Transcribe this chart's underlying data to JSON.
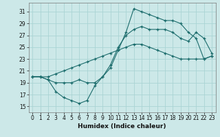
{
  "xlabel": "Humidex (Indice chaleur)",
  "background_color": "#cce8e8",
  "line_color": "#1a6b6b",
  "grid_color": "#aad4d4",
  "xlim": [
    -0.5,
    23.5
  ],
  "ylim": [
    14,
    32.5
  ],
  "xticks": [
    0,
    1,
    2,
    3,
    4,
    5,
    6,
    7,
    8,
    9,
    10,
    11,
    12,
    13,
    14,
    15,
    16,
    17,
    18,
    19,
    20,
    21,
    22,
    23
  ],
  "yticks": [
    15,
    17,
    19,
    21,
    23,
    25,
    27,
    29,
    31
  ],
  "line1_x": [
    0,
    1,
    2,
    3,
    4,
    5,
    6,
    7,
    8,
    9,
    10,
    11,
    12,
    13,
    14,
    15,
    16,
    17,
    18,
    19,
    20,
    21,
    22,
    23
  ],
  "line1_y": [
    20,
    20,
    19.5,
    17.5,
    16.5,
    16,
    15.5,
    16,
    18.5,
    20,
    22,
    25,
    27,
    28,
    28.5,
    28,
    28,
    28,
    27.5,
    26.5,
    26,
    27.5,
    26.5,
    24.0
  ],
  "line2_x": [
    0,
    1,
    2,
    3,
    4,
    5,
    6,
    7,
    8,
    9,
    10,
    11,
    12,
    13,
    14,
    15,
    16,
    17,
    18,
    19,
    20,
    21,
    22,
    23
  ],
  "line2_y": [
    20,
    20,
    20,
    20.5,
    21,
    21.5,
    22,
    22.5,
    23,
    23.5,
    24,
    24.5,
    25,
    25.5,
    25.5,
    25,
    24.5,
    24,
    23.5,
    23,
    23,
    23,
    23,
    23.5
  ],
  "line3_x": [
    0,
    1,
    2,
    3,
    4,
    5,
    6,
    7,
    8,
    9,
    10,
    11,
    12,
    13,
    14,
    15,
    16,
    17,
    18,
    19,
    20,
    21,
    22,
    23
  ],
  "line3_y": [
    20,
    20,
    19.5,
    19,
    19,
    19,
    19.5,
    19,
    19,
    20,
    21.5,
    24.5,
    27.5,
    31.5,
    31,
    30.5,
    30,
    29.5,
    29.5,
    29,
    27.5,
    26.5,
    23,
    23.5
  ]
}
